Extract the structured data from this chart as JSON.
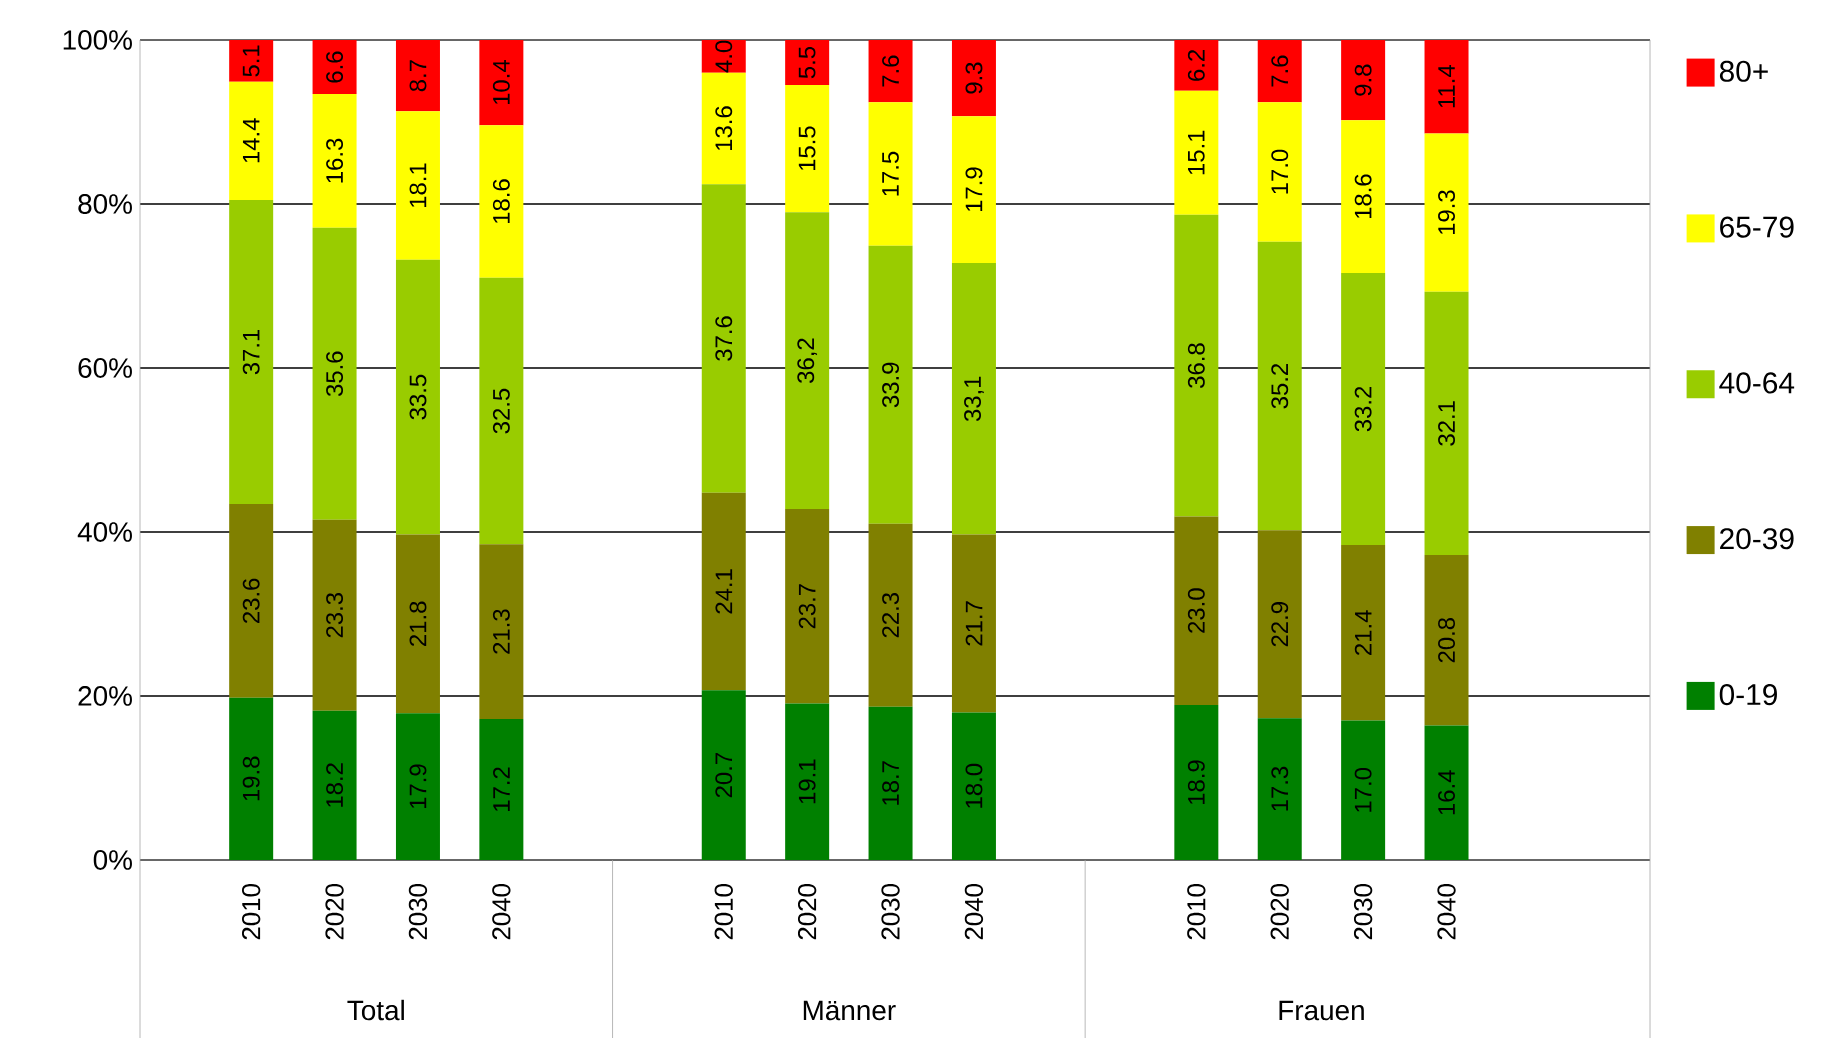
{
  "chart_data": {
    "type": "bar",
    "stacked": true,
    "categories": [
      "2010",
      "2020",
      "2030",
      "2040",
      "2010",
      "2020",
      "2030",
      "2040",
      "2010",
      "2020",
      "2030",
      "2040"
    ],
    "series": [
      {
        "name": "0-19",
        "color": "#008000",
        "values": [
          19.8,
          18.2,
          17.9,
          17.2,
          20.7,
          19.1,
          18.7,
          18.0,
          18.9,
          17.3,
          17.0,
          16.4
        ],
        "value_labels": [
          "19.8",
          "18.2",
          "17.9",
          "17.2",
          "20.7",
          "19.1",
          "18.7",
          "18.0",
          "18.9",
          "17.3",
          "17.0",
          "16.4"
        ]
      },
      {
        "name": "20-39",
        "color": "#808000",
        "values": [
          23.6,
          23.3,
          21.8,
          21.3,
          24.1,
          23.7,
          22.3,
          21.7,
          23.0,
          22.9,
          21.4,
          20.8
        ],
        "value_labels": [
          "23.6",
          "23.3",
          "21.8",
          "21.3",
          "24.1",
          "23.7",
          "22.3",
          "21.7",
          "23.0",
          "22.9",
          "21.4",
          "20.8"
        ]
      },
      {
        "name": "40-64",
        "color": "#99cc00",
        "values": [
          37.1,
          35.6,
          33.5,
          32.5,
          37.6,
          36.2,
          33.9,
          33.1,
          36.8,
          35.2,
          33.2,
          32.1
        ],
        "value_labels": [
          "37.1",
          "35.6",
          "33.5",
          "32.5",
          "37.6",
          "36,2",
          "33.9",
          "33,1",
          "36.8",
          "35.2",
          "33.2",
          "32.1"
        ]
      },
      {
        "name": "65-79",
        "color": "#ffff00",
        "values": [
          14.4,
          16.3,
          18.1,
          18.6,
          13.6,
          15.5,
          17.5,
          17.9,
          15.1,
          17.0,
          18.6,
          19.3
        ],
        "value_labels": [
          "14.4",
          "16.3",
          "18.1",
          "18.6",
          "13.6",
          "15.5",
          "17.5",
          "17.9",
          "15.1",
          "17.0",
          "18.6",
          "19.3"
        ]
      },
      {
        "name": "80+",
        "color": "#ff0000",
        "values": [
          5.1,
          6.6,
          8.7,
          10.4,
          4.0,
          5.5,
          7.6,
          9.3,
          6.2,
          7.6,
          9.8,
          11.4
        ],
        "value_labels": [
          "5.1",
          "6.6",
          "8.7",
          "10.4",
          "4.0",
          "5.5",
          "7.6",
          "9.3",
          "6.2",
          "7.6",
          "9.8",
          "11.4"
        ]
      }
    ],
    "ylim": [
      0,
      100
    ],
    "yticks": [
      {
        "value": 0,
        "label": "0%"
      },
      {
        "value": 20,
        "label": "20%"
      },
      {
        "value": 40,
        "label": "40%"
      },
      {
        "value": 60,
        "label": "60%"
      },
      {
        "value": 80,
        "label": "80%"
      },
      {
        "value": 100,
        "label": "100%"
      }
    ],
    "grid": "y",
    "legend": "right",
    "annotations": [
      "Total",
      "Männer",
      "Frauen"
    ]
  }
}
